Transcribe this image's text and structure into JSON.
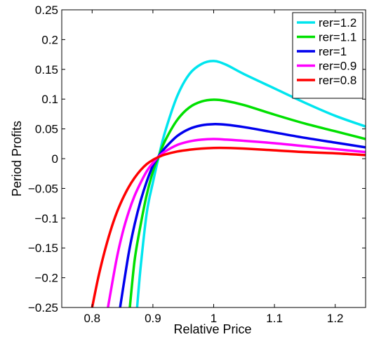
{
  "chart_data": {
    "type": "line",
    "xlabel": "Relative Price",
    "ylabel": "Period Profits",
    "xlim": [
      0.75,
      1.25
    ],
    "ylim": [
      -0.25,
      0.25
    ],
    "xticks": [
      0.8,
      0.9,
      1,
      1.1,
      1.2
    ],
    "xtick_labels": [
      "0.8",
      "0.9",
      "1",
      "1.1",
      "1.2"
    ],
    "yticks": [
      0.25,
      0.2,
      0.15,
      0.1,
      0.05,
      0,
      -0.05,
      -0.1,
      -0.15,
      -0.2,
      -0.25
    ],
    "ytick_labels": [
      "0.25",
      "0.2",
      "0.15",
      "0.1",
      "0.05",
      "0",
      "−0.05",
      "−0.1",
      "−0.15",
      "−0.2",
      "−0.25"
    ],
    "grid": false,
    "legend_position": "top-right",
    "series": [
      {
        "name": "rer=1.2",
        "color": "#00e5ee",
        "x": [
          0.874,
          0.88,
          0.89,
          0.9,
          0.91,
          0.92,
          0.94,
          0.96,
          0.98,
          1.0,
          1.02,
          1.05,
          1.1,
          1.15,
          1.2,
          1.25
        ],
        "y": [
          -0.25,
          -0.18,
          -0.09,
          -0.04,
          0.005,
          0.045,
          0.105,
          0.142,
          0.159,
          0.164,
          0.158,
          0.142,
          0.118,
          0.094,
          0.072,
          0.054
        ]
      },
      {
        "name": "rer=1.1",
        "color": "#00e000",
        "x": [
          0.862,
          0.87,
          0.88,
          0.89,
          0.9,
          0.91,
          0.92,
          0.94,
          0.96,
          0.98,
          1.0,
          1.02,
          1.05,
          1.1,
          1.15,
          1.2,
          1.25
        ],
        "y": [
          -0.25,
          -0.17,
          -0.11,
          -0.06,
          -0.022,
          0.005,
          0.03,
          0.065,
          0.086,
          0.096,
          0.099,
          0.097,
          0.09,
          0.074,
          0.059,
          0.046,
          0.033
        ]
      },
      {
        "name": "rer=1",
        "color": "#0000ee",
        "x": [
          0.846,
          0.86,
          0.87,
          0.88,
          0.89,
          0.9,
          0.91,
          0.92,
          0.94,
          0.96,
          0.98,
          1.0,
          1.02,
          1.05,
          1.1,
          1.15,
          1.2,
          1.25
        ],
        "y": [
          -0.25,
          -0.16,
          -0.11,
          -0.07,
          -0.038,
          -0.012,
          0.005,
          0.018,
          0.038,
          0.05,
          0.056,
          0.058,
          0.057,
          0.053,
          0.044,
          0.035,
          0.027,
          0.019
        ]
      },
      {
        "name": "rer=0.9",
        "color": "#ff00ff",
        "x": [
          0.826,
          0.84,
          0.85,
          0.86,
          0.87,
          0.88,
          0.89,
          0.9,
          0.91,
          0.92,
          0.94,
          0.96,
          0.98,
          1.0,
          1.02,
          1.05,
          1.1,
          1.15,
          1.2,
          1.25
        ],
        "y": [
          -0.25,
          -0.17,
          -0.125,
          -0.09,
          -0.062,
          -0.04,
          -0.021,
          -0.007,
          0.004,
          0.012,
          0.023,
          0.029,
          0.032,
          0.033,
          0.032,
          0.03,
          0.026,
          0.021,
          0.016,
          0.011
        ]
      },
      {
        "name": "rer=0.8",
        "color": "#ff0000",
        "x": [
          0.8,
          0.81,
          0.82,
          0.83,
          0.84,
          0.85,
          0.86,
          0.87,
          0.88,
          0.89,
          0.9,
          0.91,
          0.92,
          0.94,
          0.96,
          0.98,
          1.0,
          1.02,
          1.05,
          1.1,
          1.15,
          1.2,
          1.25
        ],
        "y": [
          -0.25,
          -0.2,
          -0.158,
          -0.122,
          -0.092,
          -0.068,
          -0.048,
          -0.032,
          -0.019,
          -0.009,
          -0.002,
          0.003,
          0.007,
          0.012,
          0.015,
          0.017,
          0.018,
          0.018,
          0.017,
          0.014,
          0.011,
          0.009,
          0.006
        ]
      }
    ]
  }
}
